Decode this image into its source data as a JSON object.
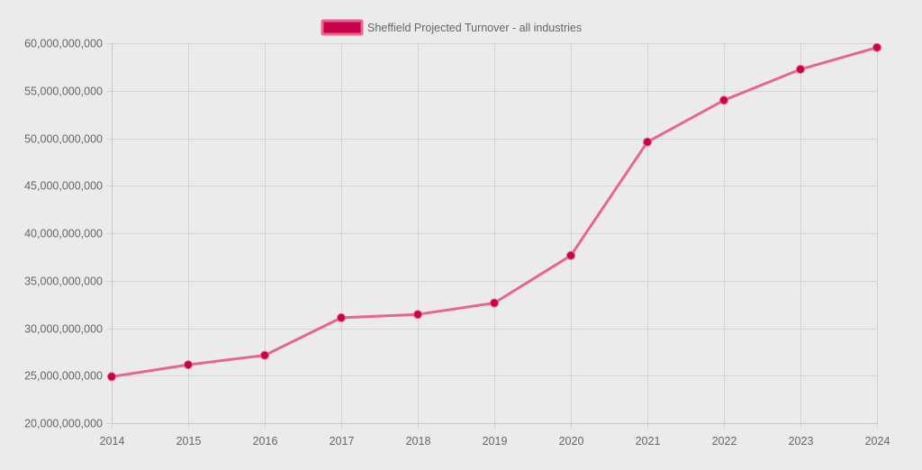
{
  "chart_data": {
    "type": "line",
    "title": "",
    "xlabel": "",
    "ylabel": "",
    "x": [
      "2014",
      "2015",
      "2016",
      "2017",
      "2018",
      "2019",
      "2020",
      "2021",
      "2022",
      "2023",
      "2024"
    ],
    "series": [
      {
        "name": "Sheffield Projected Turnover - all industries",
        "values": [
          24900000000,
          26150000000,
          27150000000,
          31100000000,
          31450000000,
          32650000000,
          37650000000,
          49600000000,
          54000000000,
          57250000000,
          59550000000
        ],
        "line_color": "#e8668a",
        "point_color": "#c8004e"
      }
    ],
    "ylim": [
      20000000000,
      60000000000
    ],
    "y_ticks": [
      "20,000,000,000",
      "25,000,000,000",
      "30,000,000,000",
      "35,000,000,000",
      "40,000,000,000",
      "45,000,000,000",
      "50,000,000,000",
      "55,000,000,000",
      "60,000,000,000"
    ],
    "y_tick_values": [
      20000000000,
      25000000000,
      30000000000,
      35000000000,
      40000000000,
      45000000000,
      50000000000,
      55000000000,
      60000000000
    ],
    "grid": true,
    "legend_position": "top-center"
  }
}
